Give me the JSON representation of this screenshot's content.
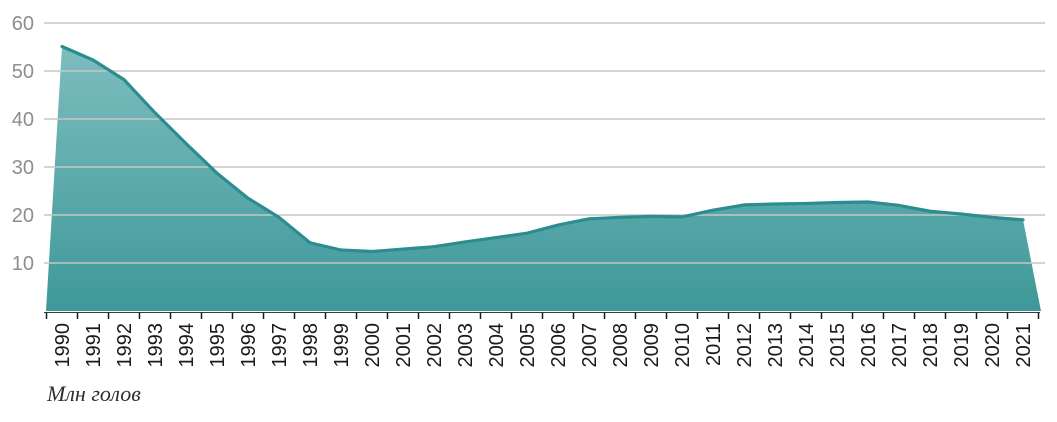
{
  "chart_data": {
    "type": "area",
    "title": "",
    "caption": "Млн голов",
    "x": [
      1990,
      1991,
      1992,
      1993,
      1994,
      1995,
      1996,
      1997,
      1998,
      1999,
      2000,
      2001,
      2002,
      2003,
      2004,
      2005,
      2006,
      2007,
      2008,
      2009,
      2010,
      2011,
      2012,
      2013,
      2014,
      2015,
      2016,
      2017,
      2018,
      2019,
      2020,
      2021
    ],
    "values": [
      55.1,
      52.3,
      48.2,
      41.3,
      34.9,
      28.7,
      23.5,
      19.5,
      14.2,
      12.7,
      12.4,
      12.9,
      13.4,
      14.4,
      15.3,
      16.2,
      17.9,
      19.2,
      19.5,
      19.7,
      19.6,
      21.0,
      22.1,
      22.3,
      22.4,
      22.6,
      22.7,
      22.0,
      20.8,
      20.2,
      19.5,
      19.0
    ],
    "xlabel": "",
    "ylabel": "",
    "ylim": [
      0,
      60
    ],
    "yticks": [
      60,
      50,
      40,
      30,
      20,
      10
    ],
    "grid": true,
    "legend": false,
    "colors": {
      "fill_top": "#7dbdbe",
      "fill_bottom": "#3e9899",
      "line": "#2b8d8f",
      "gridline": "#c6c6c6",
      "x_label": "#1a1a1a",
      "y_label": "#8d8d8d",
      "axis": "#3a3a3a",
      "tick": "#1a1a1a",
      "caption": "#2f2f2f",
      "background": "#ffffff"
    }
  }
}
